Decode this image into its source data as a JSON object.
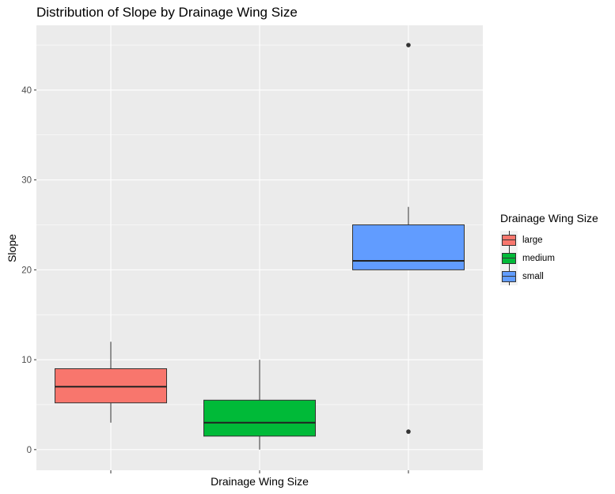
{
  "chart_data": {
    "type": "boxplot",
    "title": "Distribution of Slope by Drainage Wing Size",
    "xlabel": "Drainage Wing Size",
    "ylabel": "Slope",
    "ylim": [
      -2.3,
      47.2
    ],
    "yticks": [
      0,
      10,
      20,
      30,
      40
    ],
    "grid": true,
    "legend_title": "Drainage Wing Size",
    "legend_position": "right",
    "categories": [
      "large",
      "medium",
      "small"
    ],
    "series": [
      {
        "name": "large",
        "color": "#F8766D",
        "min": 3,
        "q1": 5.2,
        "median": 7,
        "q3": 9,
        "max": 12,
        "outliers": []
      },
      {
        "name": "medium",
        "color": "#00BA38",
        "min": 0,
        "q1": 1.5,
        "median": 3,
        "q3": 5.5,
        "max": 10,
        "outliers": []
      },
      {
        "name": "small",
        "color": "#619CFF",
        "min": 20,
        "q1": 20,
        "median": 21,
        "q3": 25,
        "max": 27,
        "outliers": [
          45,
          2
        ]
      }
    ]
  }
}
